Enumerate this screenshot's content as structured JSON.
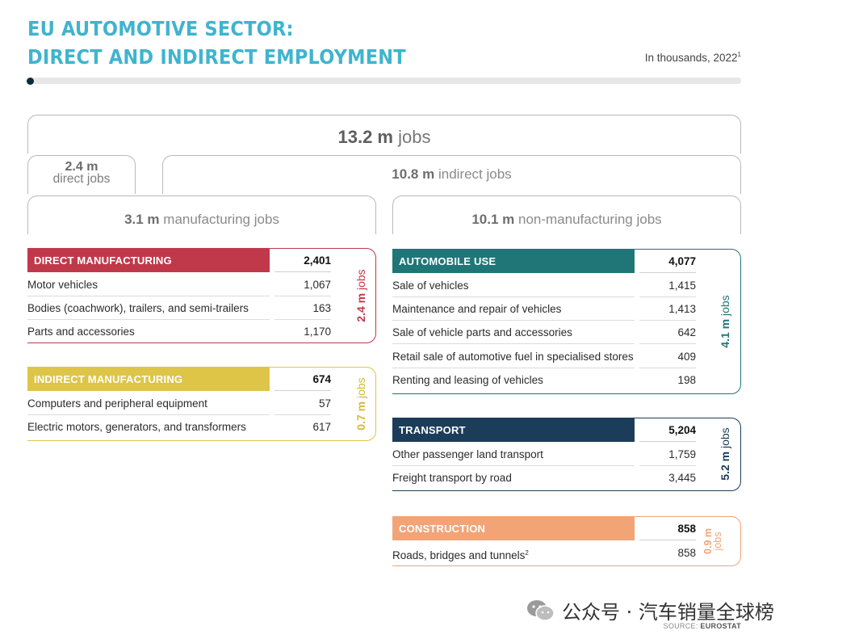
{
  "title": {
    "line1": "EU AUTOMOTIVE SECTOR:",
    "line2": "DIRECT AND INDIRECT EMPLOYMENT"
  },
  "subtitle": {
    "text": "In thousands, 2022",
    "footnote": "1"
  },
  "summary": {
    "total": {
      "value": "13.2 m",
      "unit": "jobs"
    },
    "direct": {
      "value": "2.4 m",
      "unit": "direct jobs"
    },
    "indirect": {
      "value": "10.8 m",
      "unit": "indirect jobs"
    },
    "manufacturing": {
      "value": "3.1 m",
      "unit": "manufacturing jobs"
    },
    "non_manufacturing": {
      "value": "10.1 m",
      "unit": "non-manufacturing jobs"
    }
  },
  "colors": {
    "direct_manufacturing": "#c0394a",
    "indirect_manufacturing": "#dec547",
    "automobile_use": "#207677",
    "transport": "#1c3d5a",
    "construction": "#f2a477",
    "title": "#3fb4cf"
  },
  "sections": {
    "direct_manufacturing": {
      "header": "DIRECT MANUFACTURING",
      "total": "2,401",
      "side_value": "2.4 m",
      "side_unit": "jobs",
      "rows": [
        {
          "label": "Motor vehicles",
          "value": "1,067"
        },
        {
          "label": "Bodies (coachwork), trailers, and semi-trailers",
          "value": "163"
        },
        {
          "label": "Parts and accessories",
          "value": "1,170"
        }
      ]
    },
    "indirect_manufacturing": {
      "header": "INDIRECT MANUFACTURING",
      "total": "674",
      "side_value": "0.7 m",
      "side_unit": "jobs",
      "rows": [
        {
          "label": "Computers and peripheral equipment",
          "value": "57"
        },
        {
          "label": "Electric motors, generators, and transformers",
          "value": "617"
        }
      ]
    },
    "automobile_use": {
      "header": "AUTOMOBILE USE",
      "total": "4,077",
      "side_value": "4.1 m",
      "side_unit": "jobs",
      "rows": [
        {
          "label": "Sale of vehicles",
          "value": "1,415"
        },
        {
          "label": "Maintenance and repair of vehicles",
          "value": "1,413"
        },
        {
          "label": "Sale of vehicle parts and accessories",
          "value": "642"
        },
        {
          "label": "Retail sale of automotive fuel in specialised stores",
          "value": "409"
        },
        {
          "label": "Renting and leasing of vehicles",
          "value": "198"
        }
      ]
    },
    "transport": {
      "header": "TRANSPORT",
      "total": "5,204",
      "side_value": "5.2 m",
      "side_unit": "jobs",
      "rows": [
        {
          "label": "Other passenger land transport",
          "value": "1,759"
        },
        {
          "label": "Freight transport by road",
          "value": "3,445"
        }
      ]
    },
    "construction": {
      "header": "CONSTRUCTION",
      "total": "858",
      "side_value": "0.9 m",
      "side_unit": "jobs",
      "rows": [
        {
          "label": "Roads, bridges and tunnels",
          "footnote": "2",
          "value": "858"
        }
      ]
    }
  },
  "watermark": {
    "text": "公众号 · 汽车销量全球榜",
    "icon": "wechat-icon"
  },
  "source": {
    "prefix": "SOURCE: ",
    "name": "EUROSTAT"
  }
}
